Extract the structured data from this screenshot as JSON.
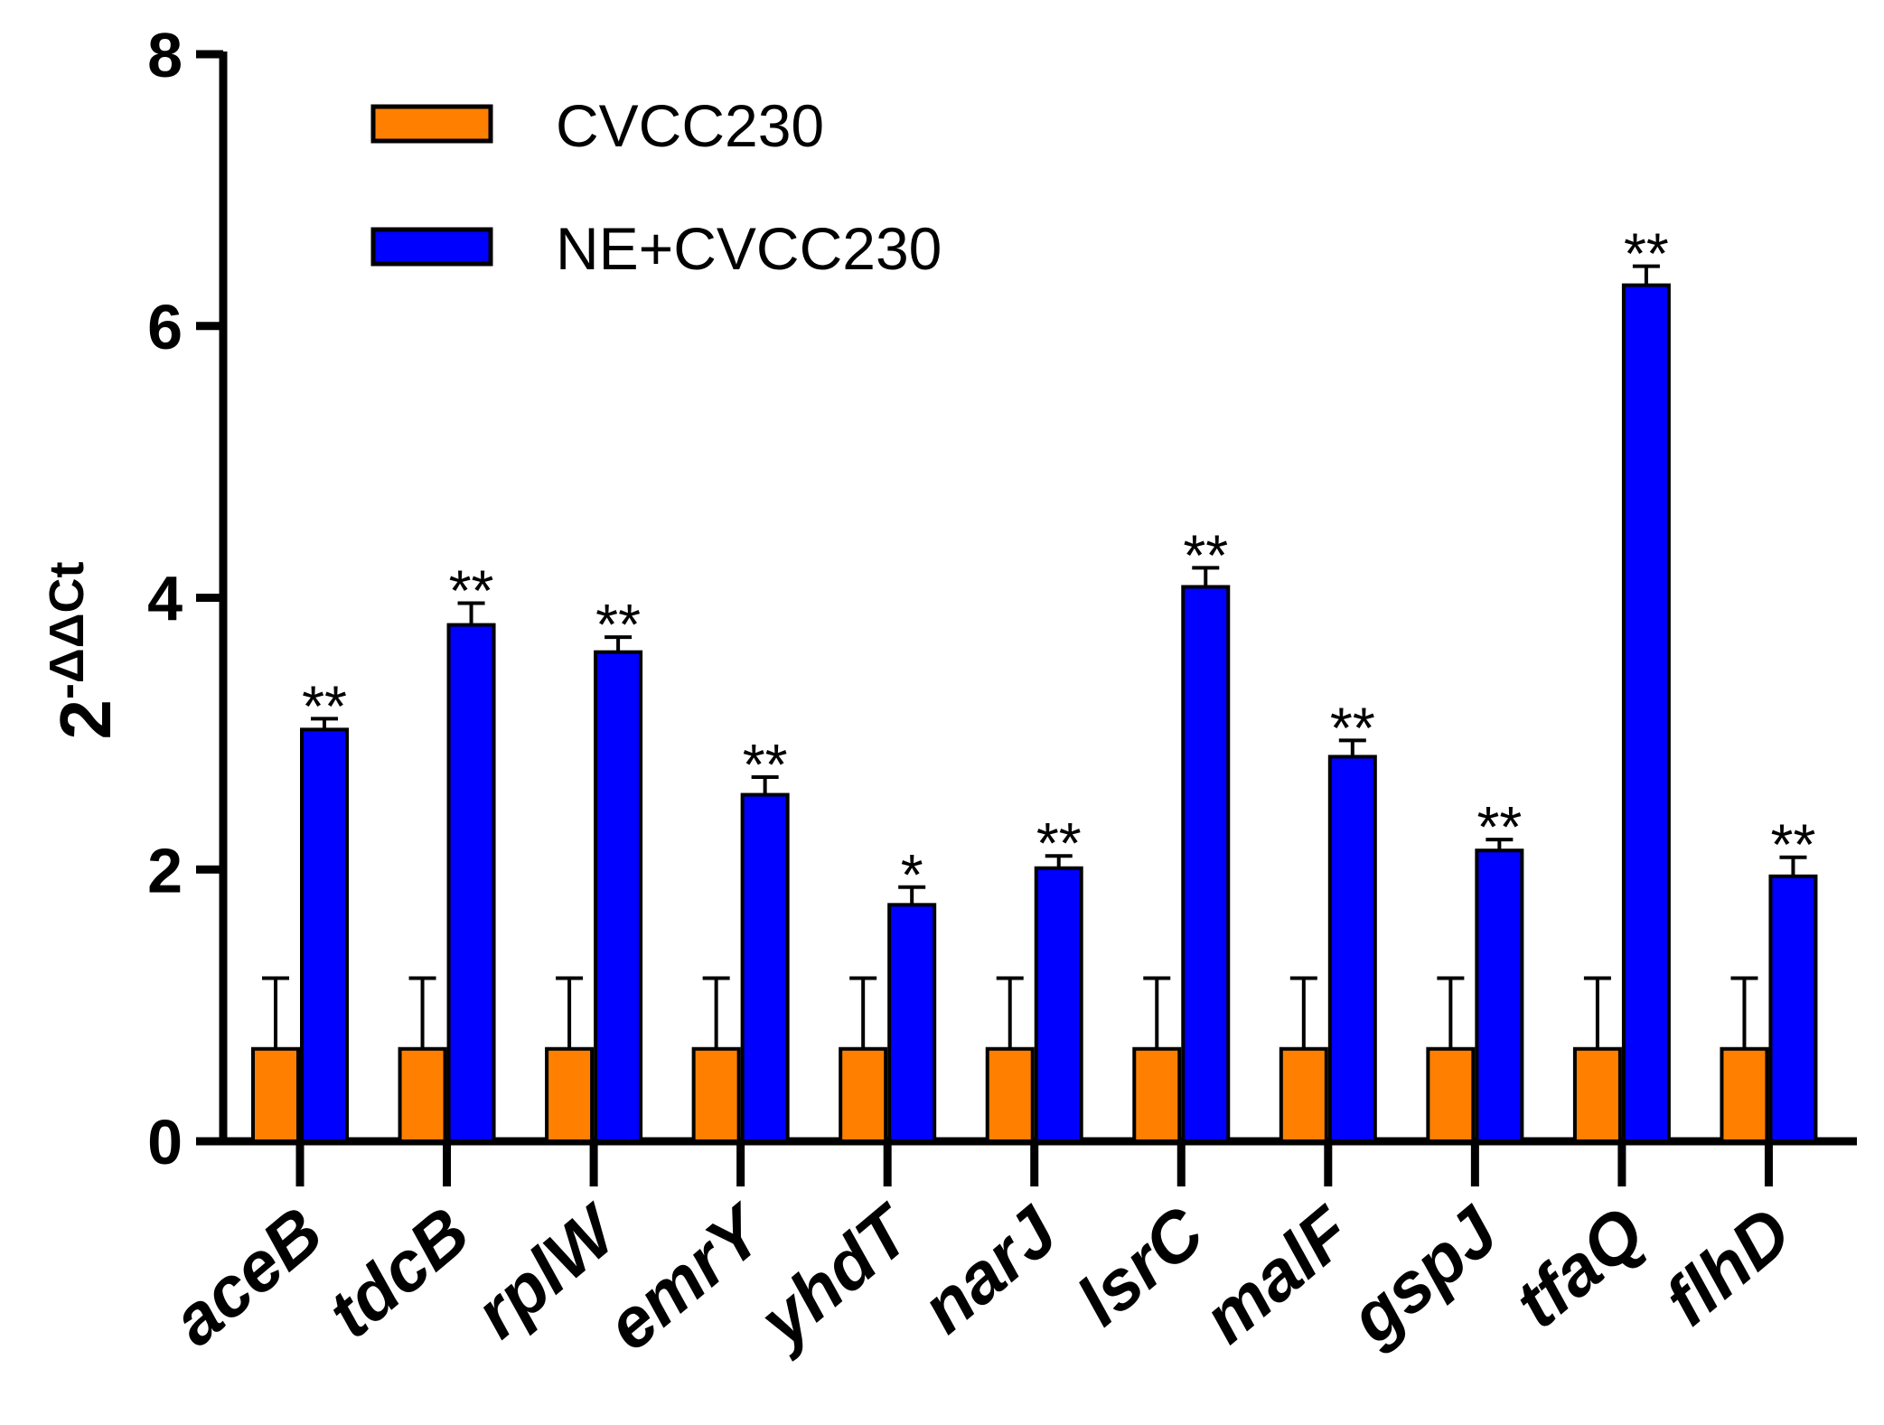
{
  "chart_data": {
    "type": "bar",
    "ylabel": "ΔΔCt",
    "ylabel_base": "2",
    "ylabel_sup": "-ΔΔCt",
    "ylim": [
      0,
      8
    ],
    "yticks": [
      "0",
      "2",
      "4",
      "6",
      "8"
    ],
    "categories": [
      "aceB",
      "tdcB",
      "rplW",
      "emrY",
      "yhdT",
      "narJ",
      "lsrC",
      "malF",
      "gspJ",
      "tfaQ",
      "flhD"
    ],
    "series": [
      {
        "name": "CVCC230",
        "color": "#ff8000",
        "values": [
          0.68,
          0.68,
          0.68,
          0.68,
          0.68,
          0.68,
          0.68,
          0.68,
          0.68,
          0.68,
          0.68
        ],
        "error_upper": [
          1.2,
          1.2,
          1.2,
          1.2,
          1.2,
          1.2,
          1.2,
          1.2,
          1.2,
          1.2,
          1.2
        ]
      },
      {
        "name": "NE+CVCC230",
        "color": "#0000ff",
        "values": [
          3.03,
          3.8,
          3.6,
          2.55,
          1.74,
          2.01,
          4.08,
          2.83,
          2.14,
          6.3,
          1.95
        ],
        "error_upper": [
          3.11,
          3.96,
          3.71,
          2.68,
          1.87,
          2.1,
          4.22,
          2.95,
          2.22,
          6.44,
          2.09
        ]
      }
    ],
    "significance": [
      "**",
      "**",
      "**",
      "**",
      "*",
      "**",
      "**",
      "**",
      "**",
      "**",
      "**"
    ],
    "legend_position": "top-left",
    "grid": false
  }
}
